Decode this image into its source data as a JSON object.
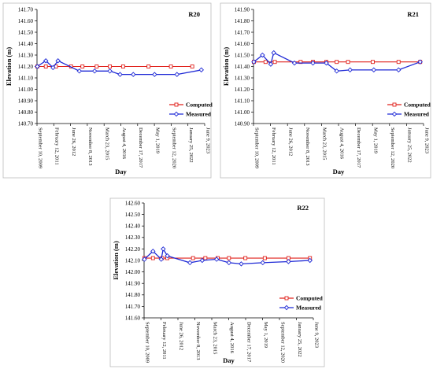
{
  "colors": {
    "computed": "#e0201b",
    "measured": "#1f2ad6",
    "axis": "#000000",
    "border": "#bbbbbb"
  },
  "chart_data": [
    {
      "type": "line",
      "title": "R20",
      "xlabel": "Day",
      "ylabel": "Elevation (m)",
      "ylim": [
        140.7,
        141.7
      ],
      "ytick_step": 0.1,
      "xlim": [
        "2009-09-10",
        "2023-06-09"
      ],
      "xtick_labels": [
        "September 10, 2009",
        "February 12, 2011",
        "June 26, 2012",
        "November 8, 2013",
        "March 23, 2015",
        "August 4, 2016",
        "December 17, 2017",
        "May 1, 2019",
        "September 12, 2020",
        "January 25, 2022",
        "June 9, 2023"
      ],
      "legend_position": "right-middle",
      "series": [
        {
          "name": "Computed",
          "marker": "square",
          "points": [
            [
              "2009-09-20",
              141.2
            ],
            [
              "2010-06-01",
              141.2
            ],
            [
              "2011-04-01",
              141.2
            ],
            [
              "2012-06-26",
              141.2
            ],
            [
              "2013-06-01",
              141.2
            ],
            [
              "2014-08-01",
              141.2
            ],
            [
              "2015-09-01",
              141.2
            ],
            [
              "2016-10-01",
              141.2
            ],
            [
              "2018-11-01",
              141.2
            ],
            [
              "2020-09-01",
              141.2
            ],
            [
              "2022-06-01",
              141.2
            ]
          ]
        },
        {
          "name": "Measured",
          "marker": "diamond",
          "points": [
            [
              "2009-09-20",
              141.2
            ],
            [
              "2010-06-01",
              141.25
            ],
            [
              "2011-01-01",
              141.19
            ],
            [
              "2011-06-01",
              141.25
            ],
            [
              "2013-03-01",
              141.16
            ],
            [
              "2014-06-01",
              141.16
            ],
            [
              "2015-09-01",
              141.16
            ],
            [
              "2016-07-01",
              141.13
            ],
            [
              "2017-08-01",
              141.13
            ],
            [
              "2019-05-01",
              141.13
            ],
            [
              "2021-03-01",
              141.13
            ],
            [
              "2023-03-01",
              141.17
            ]
          ]
        }
      ]
    },
    {
      "type": "line",
      "title": "R21",
      "xlabel": "Day",
      "ylabel": "Elevation (m)",
      "ylim": [
        140.9,
        141.9
      ],
      "ytick_step": 0.1,
      "xlim": [
        "2009-09-10",
        "2023-06-09"
      ],
      "xtick_labels": [
        "September 10, 2009",
        "February 12, 2011",
        "June 26, 2012",
        "November 8, 2013",
        "March 23, 2015",
        "August 4, 2016",
        "December 17, 2017",
        "May 1, 2019",
        "September 12, 2020",
        "January 25, 2022",
        "June 9, 2023"
      ],
      "legend_position": "right-middle",
      "series": [
        {
          "name": "Computed",
          "marker": "square",
          "points": [
            [
              "2009-09-20",
              141.44
            ],
            [
              "2010-09-01",
              141.44
            ],
            [
              "2011-06-01",
              141.44
            ],
            [
              "2013-07-01",
              141.44
            ],
            [
              "2014-07-01",
              141.44
            ],
            [
              "2015-08-01",
              141.44
            ],
            [
              "2016-06-01",
              141.44
            ],
            [
              "2017-05-01",
              141.44
            ],
            [
              "2019-05-01",
              141.44
            ],
            [
              "2021-06-01",
              141.44
            ],
            [
              "2023-03-01",
              141.44
            ]
          ]
        },
        {
          "name": "Measured",
          "marker": "diamond",
          "points": [
            [
              "2009-09-20",
              141.44
            ],
            [
              "2010-06-01",
              141.5
            ],
            [
              "2011-02-01",
              141.42
            ],
            [
              "2011-05-01",
              141.52
            ],
            [
              "2013-01-01",
              141.43
            ],
            [
              "2014-07-01",
              141.43
            ],
            [
              "2015-08-01",
              141.43
            ],
            [
              "2016-06-01",
              141.36
            ],
            [
              "2017-07-01",
              141.37
            ],
            [
              "2019-06-01",
              141.37
            ],
            [
              "2021-06-01",
              141.37
            ],
            [
              "2023-03-01",
              141.44
            ]
          ]
        }
      ]
    },
    {
      "type": "line",
      "title": "R22",
      "xlabel": "Day",
      "ylabel": "Elevation (m)",
      "ylim": [
        141.6,
        142.6
      ],
      "ytick_step": 0.1,
      "xlim": [
        "2009-09-10",
        "2023-06-09"
      ],
      "xtick_labels": [
        "September 10, 2009",
        "February 12, 2011",
        "June 26, 2012",
        "November 8, 2013",
        "March 23, 2015",
        "August 4, 2016",
        "December 17, 2017",
        "May 1, 2019",
        "September 12, 2020",
        "January 25, 2022",
        "June 9, 2023"
      ],
      "legend_position": "right-bottom",
      "series": [
        {
          "name": "Computed",
          "marker": "square",
          "points": [
            [
              "2009-09-20",
              142.12
            ],
            [
              "2010-06-01",
              142.12
            ],
            [
              "2011-03-01",
              142.12
            ],
            [
              "2011-08-01",
              142.12
            ],
            [
              "2013-09-01",
              142.12
            ],
            [
              "2014-09-01",
              142.12
            ],
            [
              "2015-09-01",
              142.12
            ],
            [
              "2016-08-01",
              142.12
            ],
            [
              "2017-12-01",
              142.12
            ],
            [
              "2019-07-01",
              142.12
            ],
            [
              "2021-06-01",
              142.12
            ],
            [
              "2023-03-01",
              142.12
            ]
          ]
        },
        {
          "name": "Measured",
          "marker": "diamond",
          "points": [
            [
              "2009-09-20",
              142.11
            ],
            [
              "2010-06-01",
              142.18
            ],
            [
              "2011-02-01",
              142.11
            ],
            [
              "2011-04-01",
              142.2
            ],
            [
              "2011-08-01",
              142.14
            ],
            [
              "2013-06-01",
              142.08
            ],
            [
              "2014-06-01",
              142.1
            ],
            [
              "2015-08-01",
              142.11
            ],
            [
              "2016-08-01",
              142.08
            ],
            [
              "2017-08-01",
              142.07
            ],
            [
              "2019-05-01",
              142.08
            ],
            [
              "2021-06-01",
              142.09
            ],
            [
              "2023-03-01",
              142.1
            ]
          ]
        }
      ]
    }
  ]
}
